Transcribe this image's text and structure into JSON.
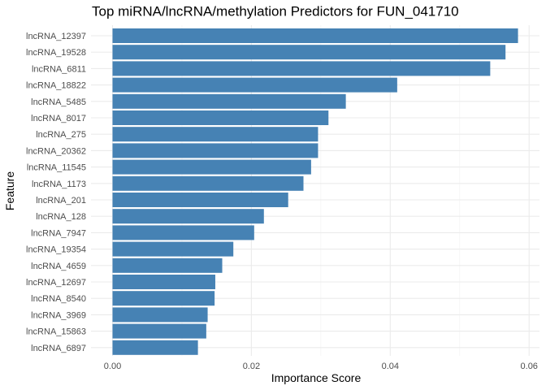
{
  "chart_data": {
    "type": "bar",
    "orientation": "horizontal",
    "title": "Top miRNA/lncRNA/methylation Predictors for FUN_041710",
    "xlabel": "Importance Score",
    "ylabel": "Feature",
    "xlim": [
      0,
      0.0615
    ],
    "x_ticks": [
      0.0,
      0.02,
      0.04,
      0.06
    ],
    "x_tick_labels": [
      "0.00",
      "0.02",
      "0.04",
      "0.06"
    ],
    "grid": true,
    "legend": "none",
    "bar_color": "#4682B4",
    "categories": [
      "lncRNA_12397",
      "lncRNA_19528",
      "lncRNA_6811",
      "lncRNA_18822",
      "lncRNA_5485",
      "lncRNA_8017",
      "lncRNA_275",
      "lncRNA_20362",
      "lncRNA_11545",
      "lncRNA_1173",
      "lncRNA_201",
      "lncRNA_128",
      "lncRNA_7947",
      "lncRNA_19354",
      "lncRNA_4659",
      "lncRNA_12697",
      "lncRNA_8540",
      "lncRNA_3969",
      "lncRNA_15863",
      "lncRNA_6897"
    ],
    "values": [
      0.0584,
      0.0566,
      0.0544,
      0.041,
      0.0336,
      0.0311,
      0.0296,
      0.0296,
      0.0286,
      0.0275,
      0.0253,
      0.0218,
      0.0204,
      0.0174,
      0.0158,
      0.0148,
      0.0147,
      0.0137,
      0.0135,
      0.0123
    ]
  }
}
